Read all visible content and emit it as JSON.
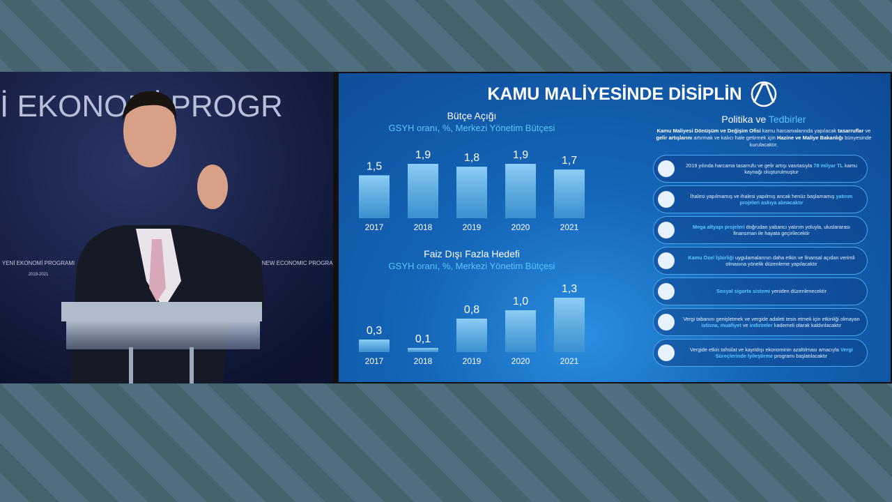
{
  "backdrop": {
    "line1": "İ EKONOMİ PROGR",
    "left_logo": "YENİ EKONOMİ PROGRAMI",
    "right_logo": "NEW ECONOMIC PROGRAM",
    "years": "2019-2021"
  },
  "slide": {
    "title": "KAMU MALİYESİNDE DİSİPLİN",
    "policy": {
      "heading": [
        {
          "text": "Politika ve "
        },
        {
          "text": "Tedbirler",
          "em": true
        }
      ],
      "intro": [
        {
          "text": "Kamu Maliyesi Dönüşüm ve Değişim Ofisi",
          "em": true
        },
        {
          "text": " kamu harcamalarında yapılacak "
        },
        {
          "text": "tasarruflar",
          "em": true
        },
        {
          "text": " ve "
        },
        {
          "text": "gelir artışlarını",
          "em": true
        },
        {
          "text": " artırmak ve kalıcı hale getirmek için "
        },
        {
          "text": "Hazine ve Maliye Bakanlığı",
          "em": true
        },
        {
          "text": " bünyesinde kurulacaktır."
        }
      ],
      "items": [
        [
          {
            "text": "2019 yılında harcama tasarrufu ve gelir artışı vasıtasıyla "
          },
          {
            "text": "78 milyar TL",
            "em": true
          },
          {
            "text": " kamu kaynağı oluşturulmuştur"
          }
        ],
        [
          {
            "text": "İhalesi yapılmamış ve ihalesi yapılmış ancak henüz başlamamış "
          },
          {
            "text": "yatırım projeleri askıya alınacaktır",
            "em": true
          }
        ],
        [
          {
            "text": "Mega altyapı projeleri",
            "em": true
          },
          {
            "text": " doğrudan yabancı yatırım yoluyla, uluslararası finansman ile hayata geçirilecektir"
          }
        ],
        [
          {
            "text": "Kamu Özel İşbirliği",
            "em": true
          },
          {
            "text": " uygulamalarının daha etkin ve finansal açıdan verimli olmasına yönelik düzenleme yapılacaktır"
          }
        ],
        [
          {
            "text": "Sosyal sigorta sistemi",
            "em": true
          },
          {
            "text": " yeniden düzenlenecektir"
          }
        ],
        [
          {
            "text": "Vergi tabanını genişletmek ve vergide adaleti tesis etmek için etkinliği olmayan "
          },
          {
            "text": "istisna, muafiyet",
            "em": true
          },
          {
            "text": " ve "
          },
          {
            "text": "indirimler",
            "em": true
          },
          {
            "text": " kademeli olarak kaldırılacaktır"
          }
        ],
        [
          {
            "text": "Vergide etkin tahsilat ve kayıtdışı ekonominin azaltılması amacıyla "
          },
          {
            "text": "Vergi Süreçlerinde İyileştirme",
            "em": true
          },
          {
            "text": " programı başlatılacaktır"
          }
        ]
      ]
    }
  },
  "chart_data": [
    {
      "type": "bar",
      "title": "Bütçe Açığı",
      "subtitle": "GSYH oranı, %, Merkezi Yönetim Bütçesi",
      "categories": [
        "2017",
        "2018",
        "2019",
        "2020",
        "2021"
      ],
      "values": [
        1.5,
        1.9,
        1.8,
        1.9,
        1.7
      ],
      "value_labels": [
        "1,5",
        "1,9",
        "1,8",
        "1,9",
        "1,7"
      ],
      "color": "#4fb3f0"
    },
    {
      "type": "bar",
      "title": "Faiz Dışı Fazla Hedefi",
      "subtitle": "GSYH oranı, %, Merkezi Yönetim Bütçesi",
      "categories": [
        "2017",
        "2018",
        "2019",
        "2020",
        "2021"
      ],
      "values": [
        0.3,
        0.1,
        0.8,
        1.0,
        1.3
      ],
      "value_labels": [
        "0,3",
        "0,1",
        "0,8",
        "1,0",
        "1,3"
      ],
      "color": "#4fb3f0"
    }
  ]
}
